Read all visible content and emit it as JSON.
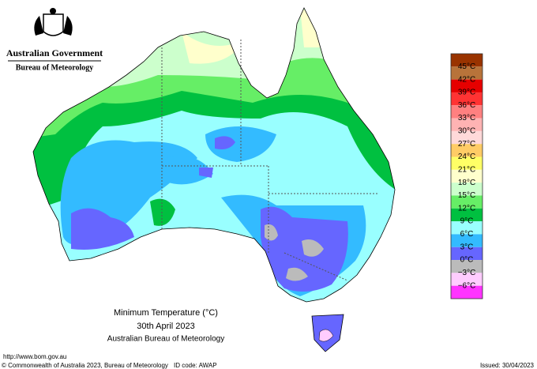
{
  "header": {
    "government": "Australian Government",
    "agency": "Bureau of Meteorology"
  },
  "map": {
    "title": "Minimum Temperature (°C)",
    "date": "30th April 2023",
    "source": "Australian Bureau of Meteorology"
  },
  "legend": {
    "labels": [
      "45°C",
      "42°C",
      "39°C",
      "36°C",
      "33°C",
      "30°C",
      "27°C",
      "24°C",
      "21°C",
      "18°C",
      "15°C",
      "12°C",
      "9°C",
      "6°C",
      "3°C",
      "0°C",
      "−3°C",
      "−6°C"
    ],
    "colors": [
      "#993300",
      "#b8733a",
      "#e60000",
      "#ff3333",
      "#ff8080",
      "#ffb3b3",
      "#ffd9d9",
      "#ffcc66",
      "#ffff66",
      "#ffffcc",
      "#ccffcc",
      "#66ee66",
      "#00c040",
      "#99ffff",
      "#33bbff",
      "#6666ff",
      "#bbbbbb",
      "#ffccff",
      "#ff33ff"
    ]
  },
  "footer": {
    "url": "http://www.bom.gov.au",
    "copyright": "© Commonwealth of Australia 2023, Bureau of Meteorology",
    "id_code": "ID code: AWAP",
    "issued": "Issued: 30/04/2023"
  }
}
